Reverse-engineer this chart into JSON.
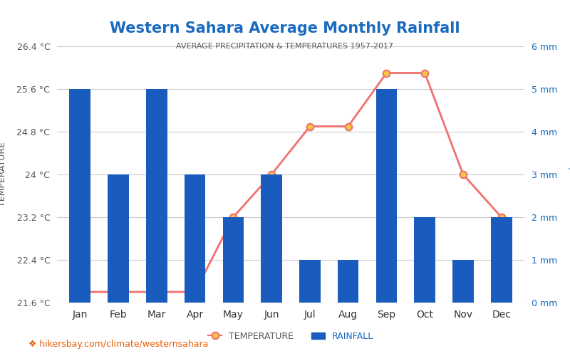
{
  "months": [
    "Jan",
    "Feb",
    "Mar",
    "Apr",
    "May",
    "Jun",
    "Jul",
    "Aug",
    "Sep",
    "Oct",
    "Nov",
    "Dec"
  ],
  "temperature": [
    21.8,
    21.8,
    21.8,
    21.8,
    23.2,
    24.0,
    24.9,
    24.9,
    25.9,
    25.9,
    24.0,
    23.2
  ],
  "rainfall_mm": [
    5,
    3,
    5,
    3,
    2,
    3,
    1,
    1,
    5,
    2,
    1,
    2
  ],
  "title": "Western Sahara Average Monthly Rainfall",
  "subtitle": "AVERAGE PRECIPITATION & TEMPERATURES 1957-2017",
  "ylabel_left": "TEMPERATURE",
  "ylabel_right": "Precipitation",
  "temp_ylim": [
    21.6,
    26.4
  ],
  "rain_ylim": [
    0,
    6
  ],
  "temp_yticks": [
    21.6,
    22.4,
    23.2,
    24.0,
    24.8,
    25.6,
    26.4
  ],
  "rain_yticks": [
    0,
    1,
    2,
    3,
    4,
    5,
    6
  ],
  "rain_yticklabels": [
    "0 mm",
    "1 mm",
    "2 mm",
    "3 mm",
    "4 mm",
    "5 mm",
    "6 mm"
  ],
  "temp_yticklabels": [
    "21.6 °C",
    "22.4 °C",
    "23.2 °C",
    "24 °C",
    "24.8 °C",
    "25.6 °C",
    "26.4 °C"
  ],
  "bar_color": "#1a5cbe",
  "line_color": "#f07070",
  "marker_face": "#f5c842",
  "marker_edge": "#f07070",
  "title_color": "#1a6abf",
  "subtitle_color": "#555555",
  "left_axis_color": "#555555",
  "right_axis_color": "#1a6abf",
  "footer_text": "hikersbay.com/climate/westernsahara",
  "footer_color": "#e85d04",
  "bg_color": "#ffffff",
  "grid_color": "#cccccc",
  "legend_temp_label": "TEMPERATURE",
  "legend_rain_label": "RAINFALL"
}
